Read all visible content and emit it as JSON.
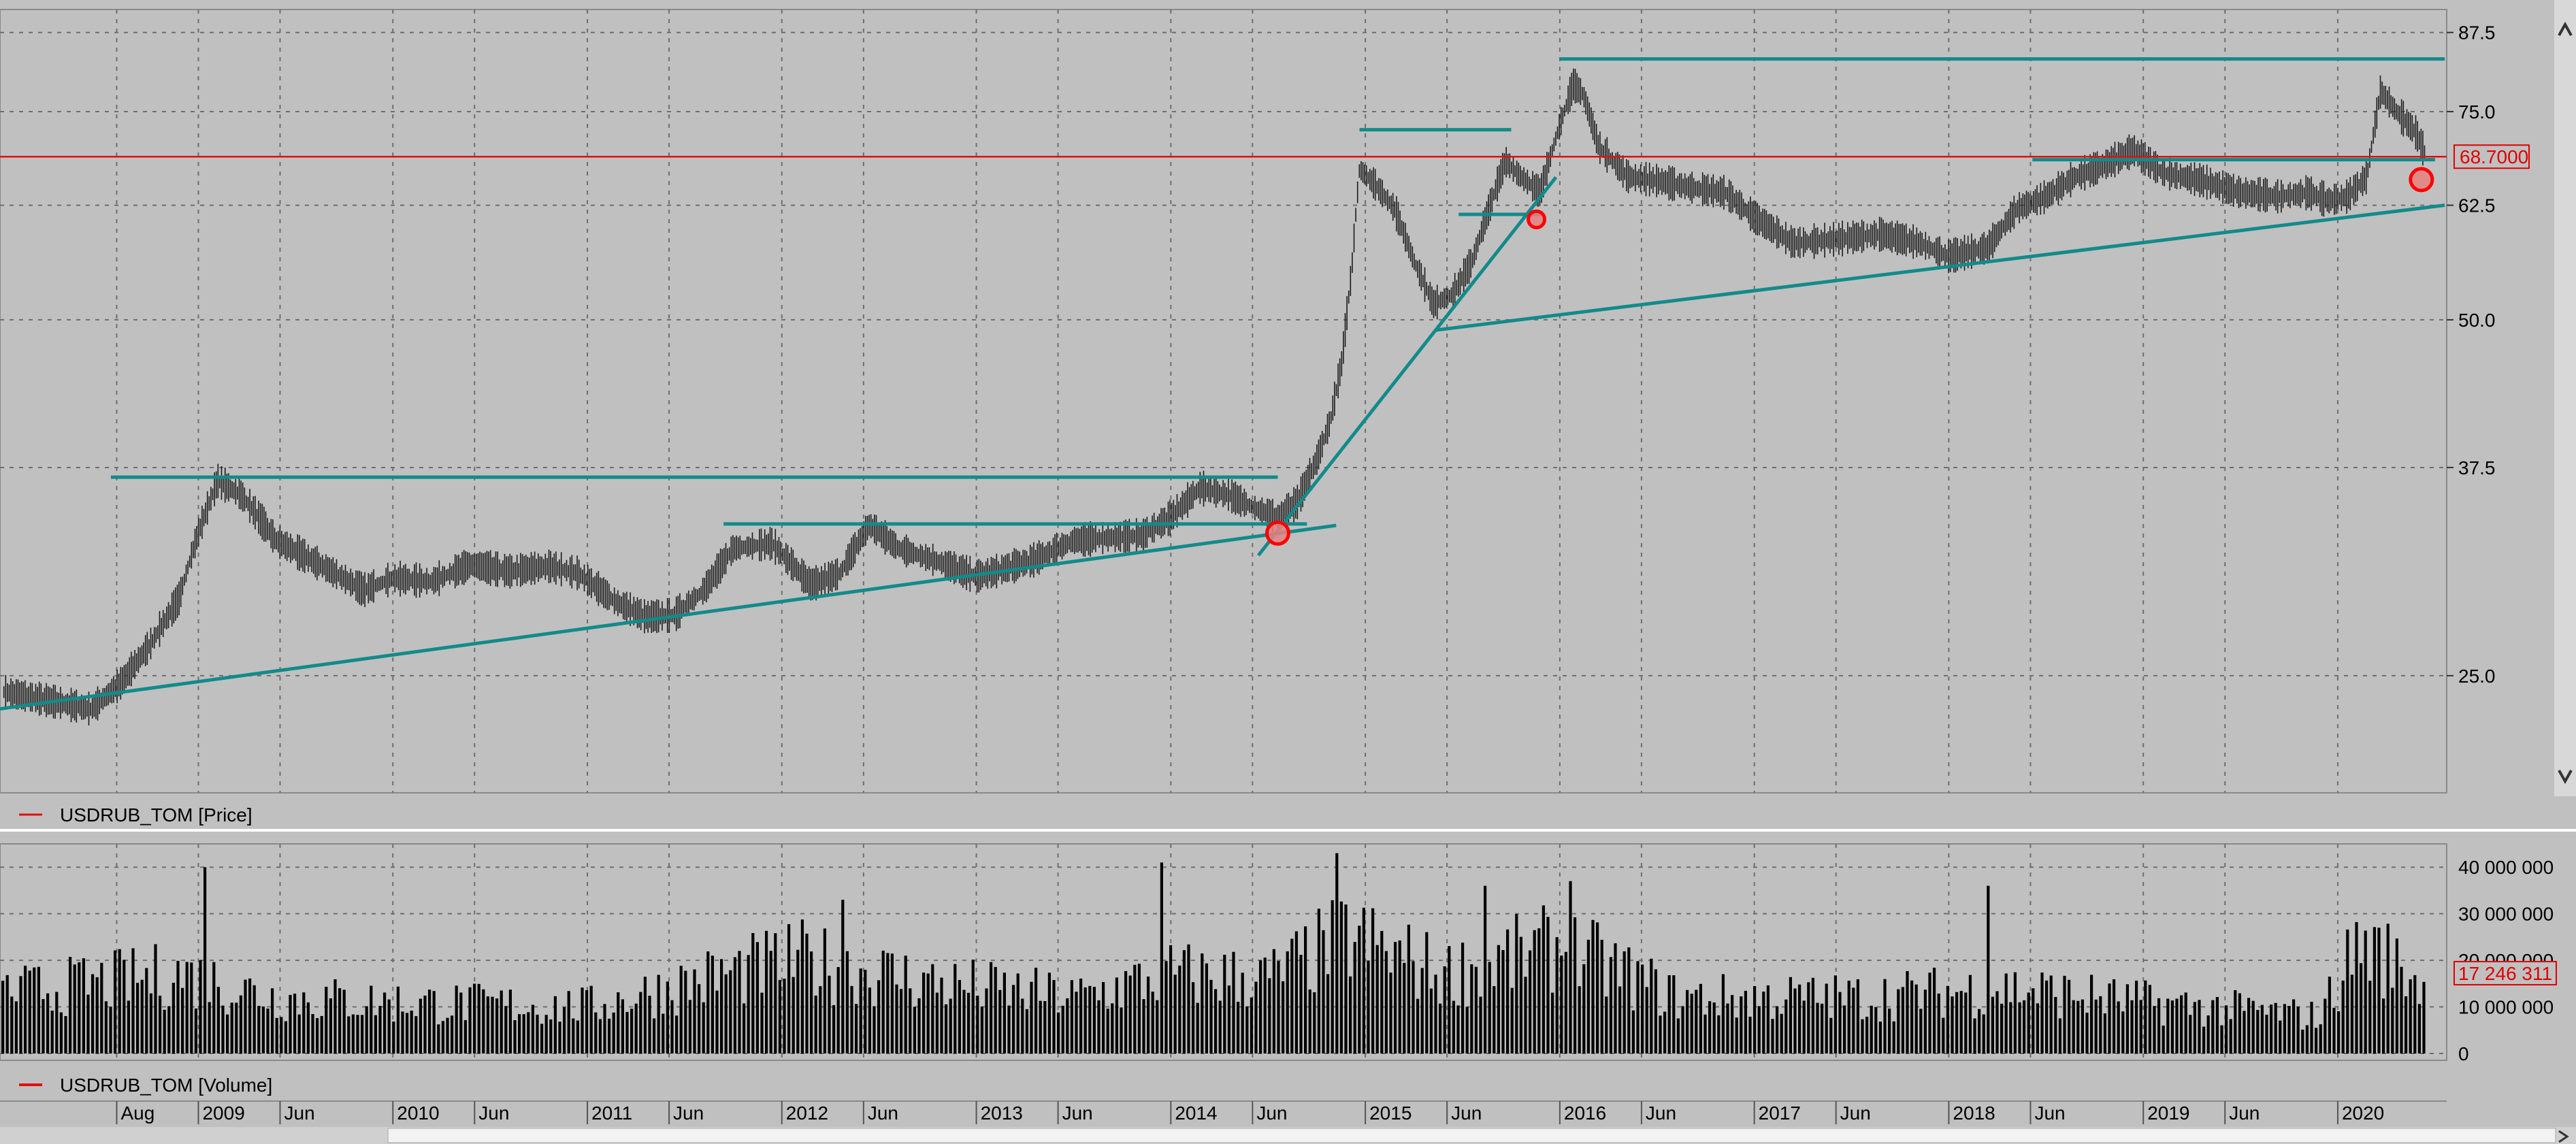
{
  "colors": {
    "background": "#c0c0c0",
    "grid": "#6e6e6e",
    "price_bars": "#1a1a1a",
    "volume_bars": "#000000",
    "trendline": "#138a8a",
    "current_line": "#e01010",
    "highlight_fill": "#e88080",
    "highlight_stroke": "#ff0000",
    "label_red": "#e00000"
  },
  "panels": {
    "price_legend": "USDRUB_TOM [Price]",
    "volume_legend": "USDRUB_TOM [Volume]"
  },
  "chart_data": [
    {
      "type": "line",
      "name": "price",
      "y_axis": {
        "ticks": [
          25.0,
          37.5,
          50.0,
          62.5,
          75.0,
          87.5
        ],
        "tick_labels": [
          "25.0",
          "37.5",
          "50.0",
          "62.5",
          "75.0",
          "87.5"
        ],
        "scale": "log"
      },
      "current_value": 68.7,
      "current_label": "68.7000",
      "x_ticks": [
        {
          "label": "Aug",
          "date": 2008.58
        },
        {
          "label": "2009",
          "date": 2009.0
        },
        {
          "label": "Jun",
          "date": 2009.42
        },
        {
          "label": "2010",
          "date": 2010.0
        },
        {
          "label": "Jun",
          "date": 2010.42
        },
        {
          "label": "2011",
          "date": 2011.0
        },
        {
          "label": "Jun",
          "date": 2011.42
        },
        {
          "label": "2012",
          "date": 2012.0
        },
        {
          "label": "Jun",
          "date": 2012.42
        },
        {
          "label": "2013",
          "date": 2013.0
        },
        {
          "label": "Jun",
          "date": 2013.42
        },
        {
          "label": "2014",
          "date": 2014.0
        },
        {
          "label": "Jun",
          "date": 2014.42
        },
        {
          "label": "2015",
          "date": 2015.0
        },
        {
          "label": "Jun",
          "date": 2015.42
        },
        {
          "label": "2016",
          "date": 2016.0
        },
        {
          "label": "Jun",
          "date": 2016.42
        },
        {
          "label": "2017",
          "date": 2017.0
        },
        {
          "label": "Jun",
          "date": 2017.42
        },
        {
          "label": "2018",
          "date": 2018.0
        },
        {
          "label": "Jun",
          "date": 2018.42
        },
        {
          "label": "2019",
          "date": 2019.0
        },
        {
          "label": "Jun",
          "date": 2019.42
        },
        {
          "label": "2020",
          "date": 2020.0
        }
      ],
      "series_points": [
        [
          2008.0,
          24.2
        ],
        [
          2008.45,
          23.4
        ],
        [
          2008.6,
          24.6
        ],
        [
          2008.75,
          26.5
        ],
        [
          2008.9,
          29.0
        ],
        [
          2009.0,
          33.0
        ],
        [
          2009.1,
          36.5
        ],
        [
          2009.22,
          35.5
        ],
        [
          2009.4,
          32.5
        ],
        [
          2009.55,
          31.5
        ],
        [
          2009.7,
          30.5
        ],
        [
          2009.85,
          29.5
        ],
        [
          2010.0,
          30.2
        ],
        [
          2010.2,
          30.0
        ],
        [
          2010.4,
          31.0
        ],
        [
          2010.6,
          30.6
        ],
        [
          2010.8,
          30.9
        ],
        [
          2010.95,
          30.5
        ],
        [
          2011.15,
          28.8
        ],
        [
          2011.3,
          28.0
        ],
        [
          2011.45,
          28.1
        ],
        [
          2011.6,
          29.5
        ],
        [
          2011.75,
          32.0
        ],
        [
          2011.95,
          32.3
        ],
        [
          2012.15,
          29.8
        ],
        [
          2012.3,
          30.5
        ],
        [
          2012.45,
          33.5
        ],
        [
          2012.6,
          32.0
        ],
        [
          2012.8,
          31.2
        ],
        [
          2013.0,
          30.3
        ],
        [
          2013.1,
          30.6
        ],
        [
          2013.3,
          31.3
        ],
        [
          2013.5,
          32.5
        ],
        [
          2013.7,
          32.7
        ],
        [
          2013.85,
          32.8
        ],
        [
          2014.0,
          34.0
        ],
        [
          2014.15,
          36.0
        ],
        [
          2014.3,
          35.5
        ],
        [
          2014.45,
          34.5
        ],
        [
          2014.55,
          34.0
        ],
        [
          2014.65,
          35.0
        ],
        [
          2014.75,
          38.0
        ],
        [
          2014.82,
          41.0
        ],
        [
          2014.88,
          46.0
        ],
        [
          2014.93,
          55.0
        ],
        [
          2014.97,
          67.0
        ],
        [
          2015.05,
          65.0
        ],
        [
          2015.15,
          62.0
        ],
        [
          2015.25,
          56.0
        ],
        [
          2015.35,
          51.5
        ],
        [
          2015.45,
          52.5
        ],
        [
          2015.55,
          56.0
        ],
        [
          2015.65,
          63.0
        ],
        [
          2015.72,
          68.0
        ],
        [
          2015.8,
          66.0
        ],
        [
          2015.9,
          64.0
        ],
        [
          2016.0,
          73.0
        ],
        [
          2016.07,
          79.0
        ],
        [
          2016.12,
          77.5
        ],
        [
          2016.2,
          70.0
        ],
        [
          2016.35,
          66.0
        ],
        [
          2016.5,
          65.5
        ],
        [
          2016.7,
          64.5
        ],
        [
          2016.85,
          64.0
        ],
        [
          2017.0,
          61.0
        ],
        [
          2017.2,
          58.0
        ],
        [
          2017.45,
          58.5
        ],
        [
          2017.65,
          59.0
        ],
        [
          2017.85,
          58.0
        ],
        [
          2018.0,
          56.5
        ],
        [
          2018.2,
          57.5
        ],
        [
          2018.35,
          62.0
        ],
        [
          2018.5,
          63.5
        ],
        [
          2018.65,
          66.0
        ],
        [
          2018.8,
          67.5
        ],
        [
          2018.95,
          69.5
        ],
        [
          2019.1,
          66.5
        ],
        [
          2019.3,
          65.5
        ],
        [
          2019.5,
          64.0
        ],
        [
          2019.7,
          63.5
        ],
        [
          2019.85,
          64.0
        ],
        [
          2019.95,
          63.0
        ],
        [
          2020.05,
          63.5
        ],
        [
          2020.15,
          66.0
        ],
        [
          2020.22,
          78.0
        ],
        [
          2020.3,
          75.0
        ],
        [
          2020.4,
          72.0
        ],
        [
          2020.45,
          69.0
        ]
      ],
      "horizontal_levels": [
        {
          "from": 2008.55,
          "to": 2014.55,
          "value": 36.8
        },
        {
          "from": 2011.7,
          "to": 2014.7,
          "value": 33.6
        },
        {
          "from": 2014.97,
          "to": 2015.75,
          "value": 72.4
        },
        {
          "from": 2015.48,
          "to": 2015.9,
          "value": 61.4
        },
        {
          "from": 2016.0,
          "to": 2020.55,
          "value": 83.1
        },
        {
          "from": 2018.43,
          "to": 2020.5,
          "value": 68.3
        }
      ],
      "trend_lines": [
        {
          "from": [
            2007.95,
            23.4
          ],
          "to": [
            2014.85,
            33.5
          ]
        },
        {
          "from": [
            2014.45,
            31.6
          ],
          "to": [
            2015.98,
            66.0
          ]
        },
        {
          "from": [
            2015.36,
            49.0
          ],
          "to": [
            2020.55,
            62.5
          ]
        }
      ],
      "highlights": [
        {
          "date": 2014.55,
          "value": 33.0,
          "radius_years": 0.2
        },
        {
          "date": 2015.88,
          "value": 60.8,
          "radius_years": 0.15
        },
        {
          "date": 2020.43,
          "value": 65.7,
          "radius_years": 0.2
        }
      ]
    },
    {
      "type": "bar",
      "name": "volume",
      "y_axis": {
        "ticks": [
          0,
          10000000,
          20000000,
          30000000,
          40000000
        ],
        "tick_labels": [
          "0",
          "10 000 000",
          "20 000 000",
          "30 000 000",
          "40 000 000"
        ]
      },
      "current_value": 17246311,
      "current_label": "17 246 311",
      "profile": [
        [
          2008.0,
          13000000
        ],
        [
          2008.9,
          17000000
        ],
        [
          2009.4,
          12000000
        ],
        [
          2010.0,
          11000000
        ],
        [
          2011.0,
          10000000
        ],
        [
          2011.7,
          17000000
        ],
        [
          2012.1,
          20000000
        ],
        [
          2012.8,
          15000000
        ],
        [
          2013.5,
          12000000
        ],
        [
          2014.0,
          17000000
        ],
        [
          2014.5,
          16000000
        ],
        [
          2014.9,
          25000000
        ],
        [
          2015.4,
          17000000
        ],
        [
          2016.0,
          23000000
        ],
        [
          2016.6,
          12000000
        ],
        [
          2017.5,
          12000000
        ],
        [
          2018.3,
          14000000
        ],
        [
          2019.0,
          11000000
        ],
        [
          2019.9,
          8000000
        ],
        [
          2020.1,
          24000000
        ],
        [
          2020.45,
          15000000
        ]
      ],
      "spikes": [
        [
          2009.02,
          40000000
        ],
        [
          2012.3,
          33000000
        ],
        [
          2013.95,
          41000000
        ],
        [
          2014.85,
          43000000
        ],
        [
          2015.6,
          36000000
        ],
        [
          2016.05,
          37000000
        ],
        [
          2018.2,
          36000000
        ],
        [
          2020.2,
          27000000
        ]
      ]
    }
  ]
}
